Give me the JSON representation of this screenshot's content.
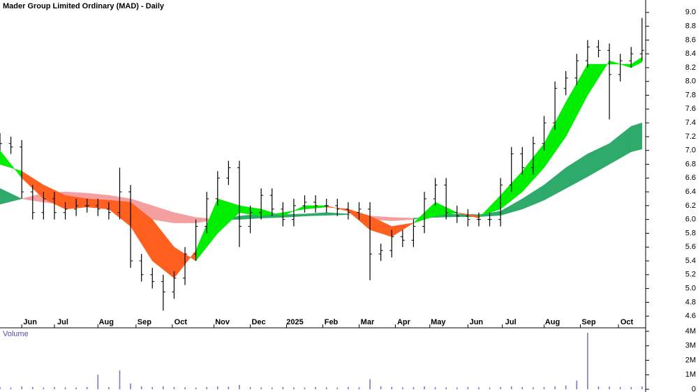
{
  "chart_data": [
    {
      "type": "ohlc",
      "title": "Mader Group Limited Ordinary (MAD) - Daily",
      "x": [
        0,
        6,
        12,
        18,
        24,
        30,
        36,
        42,
        48,
        54,
        60,
        66,
        72,
        78,
        84,
        90,
        96,
        102,
        108,
        114,
        120,
        126,
        132,
        138,
        144,
        150,
        156,
        162,
        168,
        174,
        180,
        186,
        192,
        198,
        204,
        210,
        216,
        222,
        228,
        234,
        240,
        246,
        252,
        258,
        264,
        270,
        276,
        282,
        288,
        294,
        300,
        306,
        312,
        318,
        324,
        330,
        336,
        342,
        348,
        354
      ],
      "open": [
        7.15,
        7.1,
        7.05,
        6.4,
        6.1,
        6.3,
        6.1,
        6.15,
        6.2,
        6.2,
        6.15,
        6.1,
        6.4,
        5.4,
        5.2,
        5.1,
        4.95,
        5.15,
        5.5,
        5.9,
        6.3,
        6.6,
        6.75,
        5.9,
        6.1,
        6.35,
        6.15,
        6.0,
        6.2,
        6.25,
        6.2,
        6.2,
        6.15,
        6.1,
        6.15,
        5.5,
        5.55,
        5.75,
        5.7,
        5.9,
        6.3,
        6.5,
        6.1,
        6.05,
        6.0,
        6.0,
        6.0,
        6.5,
        6.95,
        6.75,
        7.1,
        7.4,
        7.9,
        8.05,
        8.3,
        8.5,
        8.45,
        8.1,
        8.3,
        8.4
      ],
      "high": [
        7.25,
        7.2,
        7.15,
        6.5,
        6.4,
        6.4,
        6.25,
        6.3,
        6.3,
        6.3,
        6.25,
        6.75,
        6.5,
        5.5,
        5.3,
        5.2,
        5.25,
        5.6,
        6.0,
        6.4,
        6.7,
        6.85,
        6.85,
        6.2,
        6.45,
        6.45,
        6.25,
        6.3,
        6.35,
        6.35,
        6.3,
        6.3,
        6.25,
        6.25,
        6.25,
        5.65,
        5.85,
        5.85,
        6.0,
        6.4,
        6.6,
        6.6,
        6.2,
        6.15,
        6.1,
        6.1,
        6.6,
        7.05,
        7.05,
        7.2,
        7.5,
        8.0,
        8.15,
        8.4,
        8.6,
        8.6,
        8.55,
        8.4,
        8.5,
        8.92
      ],
      "low": [
        7.0,
        6.95,
        6.3,
        6.0,
        6.0,
        6.0,
        6.0,
        6.05,
        6.1,
        6.05,
        6.0,
        6.0,
        5.3,
        5.1,
        5.0,
        4.68,
        4.85,
        5.05,
        5.4,
        5.8,
        6.2,
        6.5,
        5.6,
        5.8,
        6.0,
        6.05,
        5.9,
        5.9,
        6.1,
        6.1,
        6.1,
        6.05,
        6.0,
        6.0,
        5.12,
        5.4,
        5.45,
        5.6,
        5.6,
        5.8,
        6.2,
        6.0,
        5.95,
        5.9,
        5.9,
        5.9,
        5.9,
        6.4,
        6.65,
        6.65,
        7.0,
        7.3,
        7.8,
        7.95,
        8.2,
        8.35,
        7.45,
        8.0,
        8.2,
        8.3
      ],
      "close": [
        7.1,
        7.05,
        6.4,
        6.1,
        6.3,
        6.1,
        6.15,
        6.2,
        6.2,
        6.15,
        6.1,
        6.4,
        5.4,
        5.2,
        5.1,
        4.95,
        5.15,
        5.5,
        5.9,
        6.3,
        6.6,
        6.75,
        5.9,
        6.1,
        6.35,
        6.15,
        6.0,
        6.2,
        6.25,
        6.2,
        6.2,
        6.15,
        6.1,
        6.15,
        5.5,
        5.55,
        5.75,
        5.7,
        5.9,
        6.3,
        6.5,
        6.1,
        6.05,
        6.0,
        6.0,
        6.0,
        6.5,
        6.95,
        6.75,
        7.1,
        7.4,
        7.9,
        8.05,
        8.3,
        8.5,
        8.45,
        8.1,
        8.3,
        8.4,
        8.45
      ],
      "color": "#000000",
      "band_x": [
        0,
        12,
        24,
        36,
        48,
        60,
        72,
        84,
        96,
        108,
        120,
        132,
        144,
        156,
        168,
        180,
        192,
        204,
        216,
        228,
        240,
        252,
        264,
        276,
        288,
        300,
        312,
        324,
        336,
        348,
        354
      ],
      "bands": [
        {
          "fast": [
            6.45,
            6.3,
            6.25,
            6.22,
            6.2,
            6.18,
            6.1,
            6.0,
            5.95,
            5.95,
            6.0,
            6.05,
            6.08,
            6.07,
            6.08,
            6.1,
            6.08,
            6.0,
            5.98,
            6.0,
            6.08,
            6.08,
            6.07,
            6.12,
            6.3,
            6.5,
            6.75,
            6.95,
            7.1,
            7.35,
            7.4
          ],
          "slow": [
            6.22,
            6.3,
            6.38,
            6.4,
            6.38,
            6.35,
            6.3,
            6.2,
            6.1,
            6.03,
            6.0,
            6.0,
            6.02,
            6.03,
            6.05,
            6.06,
            6.07,
            6.05,
            6.03,
            6.02,
            6.03,
            6.04,
            6.04,
            6.06,
            6.15,
            6.28,
            6.45,
            6.62,
            6.8,
            6.98,
            7.02
          ],
          "up_color": "#2eaa6a",
          "down_color": "#f4a0a0"
        },
        {
          "fast": [
            7.0,
            6.6,
            6.3,
            6.15,
            6.18,
            6.15,
            5.9,
            5.4,
            5.15,
            5.55,
            6.3,
            6.2,
            6.15,
            6.05,
            6.2,
            6.2,
            6.12,
            5.85,
            5.75,
            5.95,
            6.25,
            6.1,
            6.02,
            6.35,
            6.7,
            7.1,
            7.7,
            8.25,
            8.25,
            8.25,
            8.35
          ],
          "slow": [
            6.8,
            6.7,
            6.5,
            6.35,
            6.3,
            6.28,
            6.25,
            6.0,
            5.6,
            5.4,
            5.8,
            6.1,
            6.05,
            6.1,
            6.15,
            6.18,
            6.15,
            6.05,
            5.9,
            5.95,
            6.05,
            6.1,
            6.05,
            6.15,
            6.4,
            6.75,
            7.2,
            7.8,
            8.3,
            8.2,
            8.28
          ],
          "up_color": "#00ee00",
          "down_color": "#ff6020"
        }
      ],
      "xlim": [
        0,
        356
      ],
      "ylim": [
        4.43,
        9.18
      ],
      "yticks": [
        4.6,
        4.8,
        {
          "value": 5,
          "label": "5.0"
        },
        5.2,
        5.4,
        5.6,
        5.8,
        {
          "value": 6,
          "label": "6.0"
        },
        6.2,
        6.4,
        6.6,
        6.8,
        {
          "value": 7,
          "label": "7.0"
        },
        7.2,
        7.4,
        7.6,
        7.8,
        {
          "value": 8,
          "label": "8.0"
        },
        8.2,
        8.4,
        8.6,
        8.8,
        {
          "value": 9,
          "label": "9.0"
        }
      ],
      "xticks": [
        {
          "value": 12,
          "label": "Jun"
        },
        {
          "value": 30,
          "label": "Jul"
        },
        {
          "value": 54,
          "label": "Aug"
        },
        {
          "value": 75,
          "label": "Sep"
        },
        {
          "value": 95,
          "label": "Oct"
        },
        {
          "value": 118,
          "label": "Nov"
        },
        {
          "value": 138,
          "label": "Dec"
        },
        {
          "value": 158,
          "label": "2025"
        },
        {
          "value": 178,
          "label": "Feb"
        },
        {
          "value": 198,
          "label": "Mar"
        },
        {
          "value": 218,
          "label": "Apr"
        },
        {
          "value": 237,
          "label": "May"
        },
        {
          "value": 258,
          "label": "Jun"
        },
        {
          "value": 277,
          "label": "Jul"
        },
        {
          "value": 300,
          "label": "Aug"
        },
        {
          "value": 320,
          "label": "Sep"
        },
        {
          "value": 341,
          "label": "Oct"
        }
      ]
    },
    {
      "type": "bar",
      "title": "Volume",
      "x": [
        0,
        6,
        12,
        18,
        24,
        30,
        36,
        42,
        48,
        54,
        60,
        66,
        72,
        78,
        84,
        90,
        96,
        102,
        108,
        114,
        120,
        126,
        132,
        138,
        144,
        150,
        156,
        162,
        168,
        174,
        180,
        186,
        192,
        198,
        204,
        210,
        216,
        222,
        228,
        234,
        240,
        246,
        252,
        258,
        264,
        270,
        276,
        282,
        288,
        294,
        300,
        306,
        312,
        318,
        324,
        330,
        336,
        342,
        348,
        354
      ],
      "values": [
        150000,
        120000,
        200000,
        150000,
        120000,
        150000,
        130000,
        120000,
        150000,
        1000000,
        150000,
        1300000,
        400000,
        200000,
        150000,
        200000,
        150000,
        130000,
        120000,
        150000,
        200000,
        180000,
        300000,
        150000,
        130000,
        120000,
        150000,
        130000,
        120000,
        150000,
        130000,
        120000,
        150000,
        140000,
        700000,
        200000,
        150000,
        130000,
        150000,
        200000,
        150000,
        130000,
        120000,
        150000,
        140000,
        120000,
        150000,
        200000,
        150000,
        130000,
        150000,
        200000,
        250000,
        600000,
        3900000,
        200000,
        180000,
        150000,
        150000,
        200000
      ],
      "color": "#7878c8",
      "xlim": [
        0,
        356
      ],
      "ylim": [
        -190000,
        4240000
      ],
      "yticks": [
        0,
        {
          "value": 1000000,
          "label": "1M"
        },
        {
          "value": 2000000,
          "label": "2M"
        },
        {
          "value": 3000000,
          "label": "3M"
        },
        {
          "value": 4000000,
          "label": "4M"
        }
      ]
    }
  ]
}
